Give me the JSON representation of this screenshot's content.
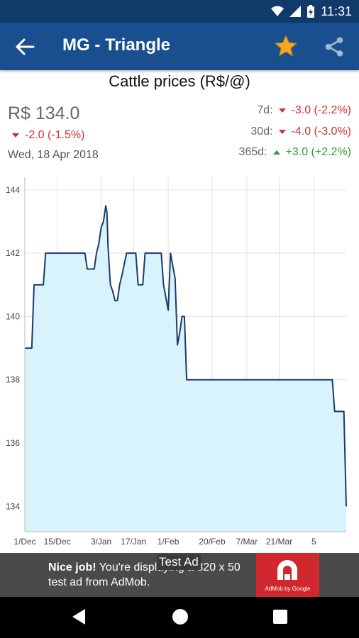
{
  "status_bar": {
    "time": "11:31"
  },
  "app_bar": {
    "title": "MG - Triangle"
  },
  "chart_title": "Cattle prices (R$/@)",
  "summary": {
    "price": "R$ 134.0",
    "change": "-2.0 (-1.5%)",
    "date": "Wed, 18 Apr 2018",
    "stats": [
      {
        "label": "7d:",
        "value": "-3.0 (-2.2%)",
        "direction": "down"
      },
      {
        "label": "30d:",
        "value": "-4.0 (-3.0%)",
        "direction": "down"
      },
      {
        "label": "365d:",
        "value": "+3.0 (+2.2%)",
        "direction": "up"
      }
    ]
  },
  "colors": {
    "app_bar": "#1a4f8f",
    "status_bar": "#103a6a",
    "line": "#1a3a6e",
    "fill": "#d8f3fb",
    "down": "#d32f2f",
    "up": "#2e9e38",
    "star": "#f5a623"
  },
  "chart_data": {
    "type": "area",
    "ylim": [
      133.2,
      144.4
    ],
    "y_ticks": [
      "134",
      "136",
      "138",
      "140",
      "142",
      "144"
    ],
    "y_tick_values": [
      134,
      136,
      138,
      140,
      142,
      144
    ],
    "x_tick_labels": [
      "1/Dec",
      "15/Dec",
      "3/Jan",
      "17/Jan",
      "1/Feb",
      "20/Feb",
      "7/Mar",
      "21/Mar",
      "5"
    ],
    "x_range_days": [
      0,
      139
    ],
    "x_tick_days": [
      0,
      14,
      33,
      47,
      62,
      81,
      96,
      110,
      125
    ],
    "x": [
      0,
      3,
      4,
      6,
      8,
      9,
      13,
      14,
      26,
      27,
      30,
      31,
      32,
      33,
      34,
      35,
      35.5,
      36,
      37,
      38,
      39,
      40,
      41,
      42,
      44,
      45,
      48,
      49,
      51,
      52,
      53,
      54,
      56,
      59,
      60,
      62,
      63,
      65,
      66,
      67,
      68,
      69,
      70,
      71,
      72,
      80,
      81,
      100,
      107,
      133,
      134,
      138,
      139
    ],
    "y": [
      139,
      139,
      141,
      141,
      141,
      142,
      142,
      142,
      142,
      141.5,
      141.5,
      142,
      142.3,
      142.8,
      143,
      143.5,
      143.3,
      142.2,
      141,
      140.8,
      140.5,
      140.5,
      141,
      141.3,
      142,
      142,
      142,
      141,
      141,
      142,
      142,
      142,
      142,
      142,
      141,
      140.2,
      142,
      141.2,
      139.1,
      139.5,
      140,
      140,
      138,
      138,
      138,
      138,
      138,
      138,
      138,
      138,
      137,
      137,
      134
    ]
  },
  "ad": {
    "headline": "Nice job!",
    "body": "You're displaying a 320 x 50 test ad from AdMob.",
    "logo_caption": "AdMob by Google",
    "badge": "Test Ad"
  }
}
